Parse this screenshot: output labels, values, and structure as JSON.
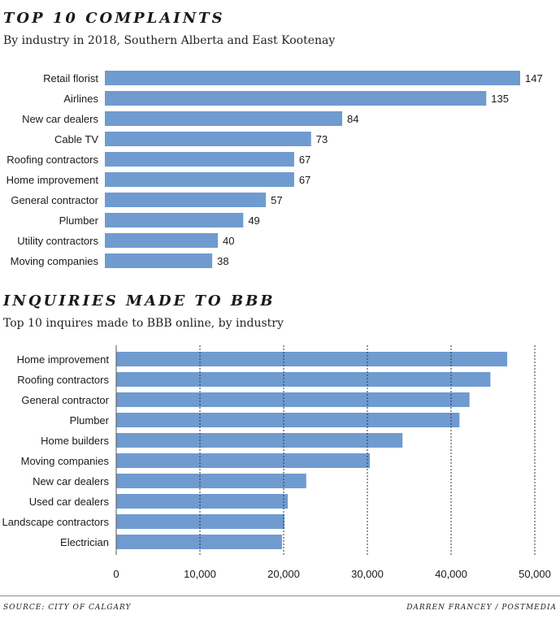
{
  "chart_data": [
    {
      "type": "bar",
      "orientation": "horizontal",
      "title": "TOP 10 COMPLAINTS",
      "subtitle": "By industry in 2018, Southern Alberta and East Kootenay",
      "categories": [
        "Retail florist",
        "Airlines",
        "New car dealers",
        "Cable TV",
        "Roofing contractors",
        "Home improvement",
        "General contractor",
        "Plumber",
        "Utility contractors",
        "Moving companies"
      ],
      "values": [
        147,
        135,
        84,
        73,
        67,
        67,
        57,
        49,
        40,
        38
      ],
      "value_labels": [
        "147",
        "135",
        "84",
        "73",
        "67",
        "67",
        "57",
        "49",
        "40",
        "38"
      ],
      "xlim": [
        0,
        147
      ],
      "grid": false,
      "bar_color": "#6f9bd0"
    },
    {
      "type": "bar",
      "orientation": "horizontal",
      "title": "INQUIRIES MADE TO BBB",
      "subtitle": "Top 10 inquires made to BBB online, by industry",
      "categories": [
        "Home improvement",
        "Roofing contractors",
        "General contractor",
        "Plumber",
        "Home builders",
        "Moving companies",
        "New car dealers",
        "Used car dealers",
        "Landscape contractors",
        "Electrician"
      ],
      "values": [
        46700,
        44700,
        42200,
        41000,
        34200,
        30300,
        22700,
        20500,
        20100,
        19800
      ],
      "xlim": [
        0,
        50000
      ],
      "xticks": [
        0,
        10000,
        20000,
        30000,
        40000,
        50000
      ],
      "xtick_labels": [
        "0",
        "10,000",
        "20,000",
        "30,000",
        "40,000",
        "50,000"
      ],
      "grid": true,
      "bar_color": "#6f9bd0"
    }
  ],
  "footer": {
    "source": "SOURCE: CITY OF CALGARY",
    "credit": "DARREN FRANCEY / POSTMEDIA"
  }
}
